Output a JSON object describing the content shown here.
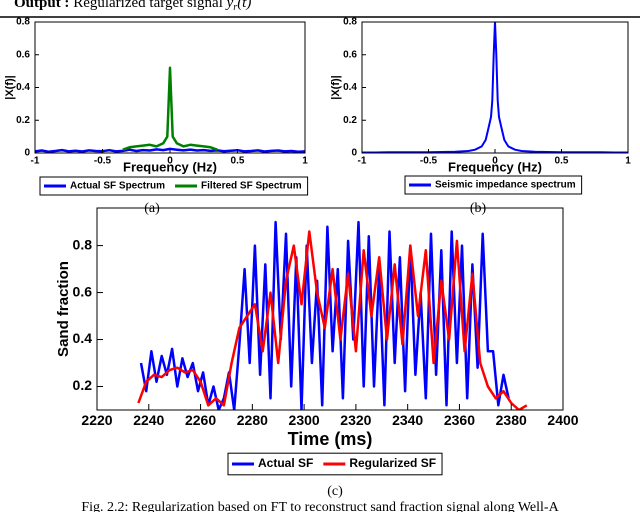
{
  "header": {
    "label": "Output :",
    "text": "Regularized target signal",
    "math_base": "y",
    "math_sub": "r",
    "math_arg": "(t)"
  },
  "figure_caption": "Fig. 2.2: Regularization based on FT to reconstruct sand fraction signal along Well-A",
  "chart_data": [
    {
      "type": "line",
      "caption": "(a)",
      "x_label": "Frequency (Hz)",
      "y_label": "|X(f)|",
      "xlim": [
        -1,
        1
      ],
      "ylim": [
        0,
        0.8
      ],
      "xticks": [
        -1,
        -0.5,
        0,
        0.5,
        1
      ],
      "yticks": [
        0,
        0.2,
        0.4,
        0.6,
        0.8
      ],
      "legend": "below",
      "series": [
        {
          "name": "Actual SF Spectrum",
          "color": "#0000ff",
          "x": [
            -1,
            -0.95,
            -0.9,
            -0.85,
            -0.8,
            -0.75,
            -0.7,
            -0.65,
            -0.6,
            -0.55,
            -0.5,
            -0.45,
            -0.4,
            -0.35,
            -0.3,
            -0.25,
            -0.2,
            -0.15,
            -0.1,
            -0.05,
            0,
            0.05,
            0.1,
            0.15,
            0.2,
            0.25,
            0.3,
            0.35,
            0.4,
            0.45,
            0.5,
            0.55,
            0.6,
            0.65,
            0.7,
            0.75,
            0.8,
            0.85,
            0.9,
            0.95,
            1
          ],
          "values": [
            0.01,
            0.015,
            0.008,
            0.012,
            0.018,
            0.01,
            0.014,
            0.009,
            0.016,
            0.012,
            0.011,
            0.017,
            0.01,
            0.013,
            0.02,
            0.012,
            0.018,
            0.015,
            0.022,
            0.018,
            0.025,
            0.02,
            0.016,
            0.021,
            0.015,
            0.018,
            0.013,
            0.016,
            0.011,
            0.014,
            0.017,
            0.01,
            0.012,
            0.016,
            0.009,
            0.013,
            0.015,
            0.01,
            0.012,
            0.008,
            0.01
          ]
        },
        {
          "name": "Filtered SF Spectrum",
          "color": "#008000",
          "x": [
            -0.35,
            -0.3,
            -0.25,
            -0.2,
            -0.15,
            -0.1,
            -0.05,
            -0.02,
            0,
            0.02,
            0.05,
            0.1,
            0.15,
            0.2,
            0.25,
            0.3,
            0.35
          ],
          "values": [
            0.02,
            0.035,
            0.04,
            0.045,
            0.05,
            0.04,
            0.06,
            0.1,
            0.52,
            0.1,
            0.06,
            0.04,
            0.05,
            0.045,
            0.04,
            0.035,
            0.02
          ]
        }
      ]
    },
    {
      "type": "line",
      "caption": "(b)",
      "x_label": "Frequency (Hz)",
      "y_label": "|X(f)|",
      "xlim": [
        -1,
        1
      ],
      "ylim": [
        0,
        0.8
      ],
      "xticks": [
        -1,
        -0.5,
        0,
        0.5,
        1
      ],
      "yticks": [
        0,
        0.2,
        0.4,
        0.6,
        0.8
      ],
      "legend": "below",
      "series": [
        {
          "name": "Seismic impedance spectrum",
          "color": "#0000ff",
          "x": [
            -1,
            -0.9,
            -0.8,
            -0.7,
            -0.6,
            -0.5,
            -0.4,
            -0.3,
            -0.2,
            -0.15,
            -0.1,
            -0.07,
            -0.05,
            -0.03,
            -0.02,
            -0.01,
            0,
            0.01,
            0.02,
            0.03,
            0.05,
            0.07,
            0.1,
            0.15,
            0.2,
            0.3,
            0.4,
            0.5,
            0.6,
            0.7,
            0.8,
            0.9,
            1
          ],
          "values": [
            0.003,
            0.003,
            0.004,
            0.004,
            0.005,
            0.005,
            0.006,
            0.008,
            0.012,
            0.02,
            0.04,
            0.08,
            0.15,
            0.22,
            0.32,
            0.6,
            0.8,
            0.6,
            0.32,
            0.22,
            0.15,
            0.08,
            0.04,
            0.02,
            0.012,
            0.008,
            0.006,
            0.005,
            0.005,
            0.004,
            0.004,
            0.003,
            0.003
          ]
        }
      ]
    },
    {
      "type": "line",
      "caption": "(c)",
      "x_label": "Time (ms)",
      "y_label": "Sand fraction",
      "xlim": [
        2220,
        2400
      ],
      "ylim": [
        0.1,
        0.96
      ],
      "xticks": [
        2220,
        2240,
        2260,
        2280,
        2300,
        2320,
        2340,
        2360,
        2380,
        2400
      ],
      "yticks": [
        0.2,
        0.4,
        0.6,
        0.8
      ],
      "legend": "below",
      "series": [
        {
          "name": "Actual SF",
          "color": "#0000ff",
          "x": [
            2237,
            2239,
            2241,
            2243,
            2245,
            2247,
            2249,
            2251,
            2253,
            2255,
            2257,
            2259,
            2261,
            2263,
            2265,
            2267,
            2269,
            2271,
            2273,
            2275,
            2277,
            2279,
            2281,
            2283,
            2285,
            2287,
            2289,
            2291,
            2293,
            2295,
            2297,
            2299,
            2301,
            2303,
            2305,
            2307,
            2309,
            2311,
            2313,
            2315,
            2317,
            2319,
            2321,
            2323,
            2325,
            2327,
            2329,
            2331,
            2333,
            2335,
            2337,
            2339,
            2341,
            2343,
            2345,
            2347,
            2349,
            2351,
            2353,
            2355,
            2357,
            2359,
            2361,
            2363,
            2365,
            2367,
            2369,
            2371,
            2373,
            2375,
            2377,
            2379
          ],
          "values": [
            0.3,
            0.18,
            0.35,
            0.22,
            0.33,
            0.25,
            0.36,
            0.2,
            0.32,
            0.24,
            0.3,
            0.18,
            0.26,
            0.12,
            0.2,
            0.1,
            0.15,
            0.26,
            0.1,
            0.38,
            0.7,
            0.3,
            0.8,
            0.25,
            0.72,
            0.15,
            0.9,
            0.4,
            0.85,
            0.2,
            0.75,
            0.1,
            0.8,
            0.3,
            0.65,
            0.12,
            0.88,
            0.35,
            0.7,
            0.15,
            0.82,
            0.4,
            0.9,
            0.2,
            0.84,
            0.2,
            0.7,
            0.12,
            0.86,
            0.3,
            0.75,
            0.18,
            0.8,
            0.25,
            0.6,
            0.15,
            0.85,
            0.25,
            0.78,
            0.12,
            0.86,
            0.3,
            0.8,
            0.15,
            0.72,
            0.28,
            0.85,
            0.35,
            0.35,
            0.12,
            0.25,
            0.15
          ]
        },
        {
          "name": "Regularized SF",
          "color": "#ff0000",
          "x": [
            2236,
            2239,
            2242,
            2245,
            2248,
            2251,
            2254,
            2257,
            2260,
            2263,
            2266,
            2269,
            2272,
            2275,
            2278,
            2281,
            2284,
            2287,
            2290,
            2293,
            2296,
            2299,
            2302,
            2305,
            2308,
            2311,
            2314,
            2317,
            2320,
            2323,
            2326,
            2329,
            2332,
            2335,
            2338,
            2341,
            2344,
            2347,
            2350,
            2353,
            2356,
            2359,
            2362,
            2365,
            2368,
            2371,
            2374,
            2377,
            2380,
            2383,
            2386
          ],
          "values": [
            0.13,
            0.22,
            0.25,
            0.24,
            0.27,
            0.28,
            0.26,
            0.27,
            0.22,
            0.12,
            0.15,
            0.12,
            0.3,
            0.45,
            0.5,
            0.55,
            0.35,
            0.6,
            0.3,
            0.65,
            0.8,
            0.55,
            0.86,
            0.6,
            0.45,
            0.7,
            0.4,
            0.68,
            0.35,
            0.78,
            0.5,
            0.75,
            0.4,
            0.72,
            0.38,
            0.8,
            0.5,
            0.78,
            0.3,
            0.65,
            0.4,
            0.82,
            0.35,
            0.68,
            0.3,
            0.2,
            0.15,
            0.18,
            0.13,
            0.1,
            0.12
          ]
        }
      ]
    }
  ]
}
